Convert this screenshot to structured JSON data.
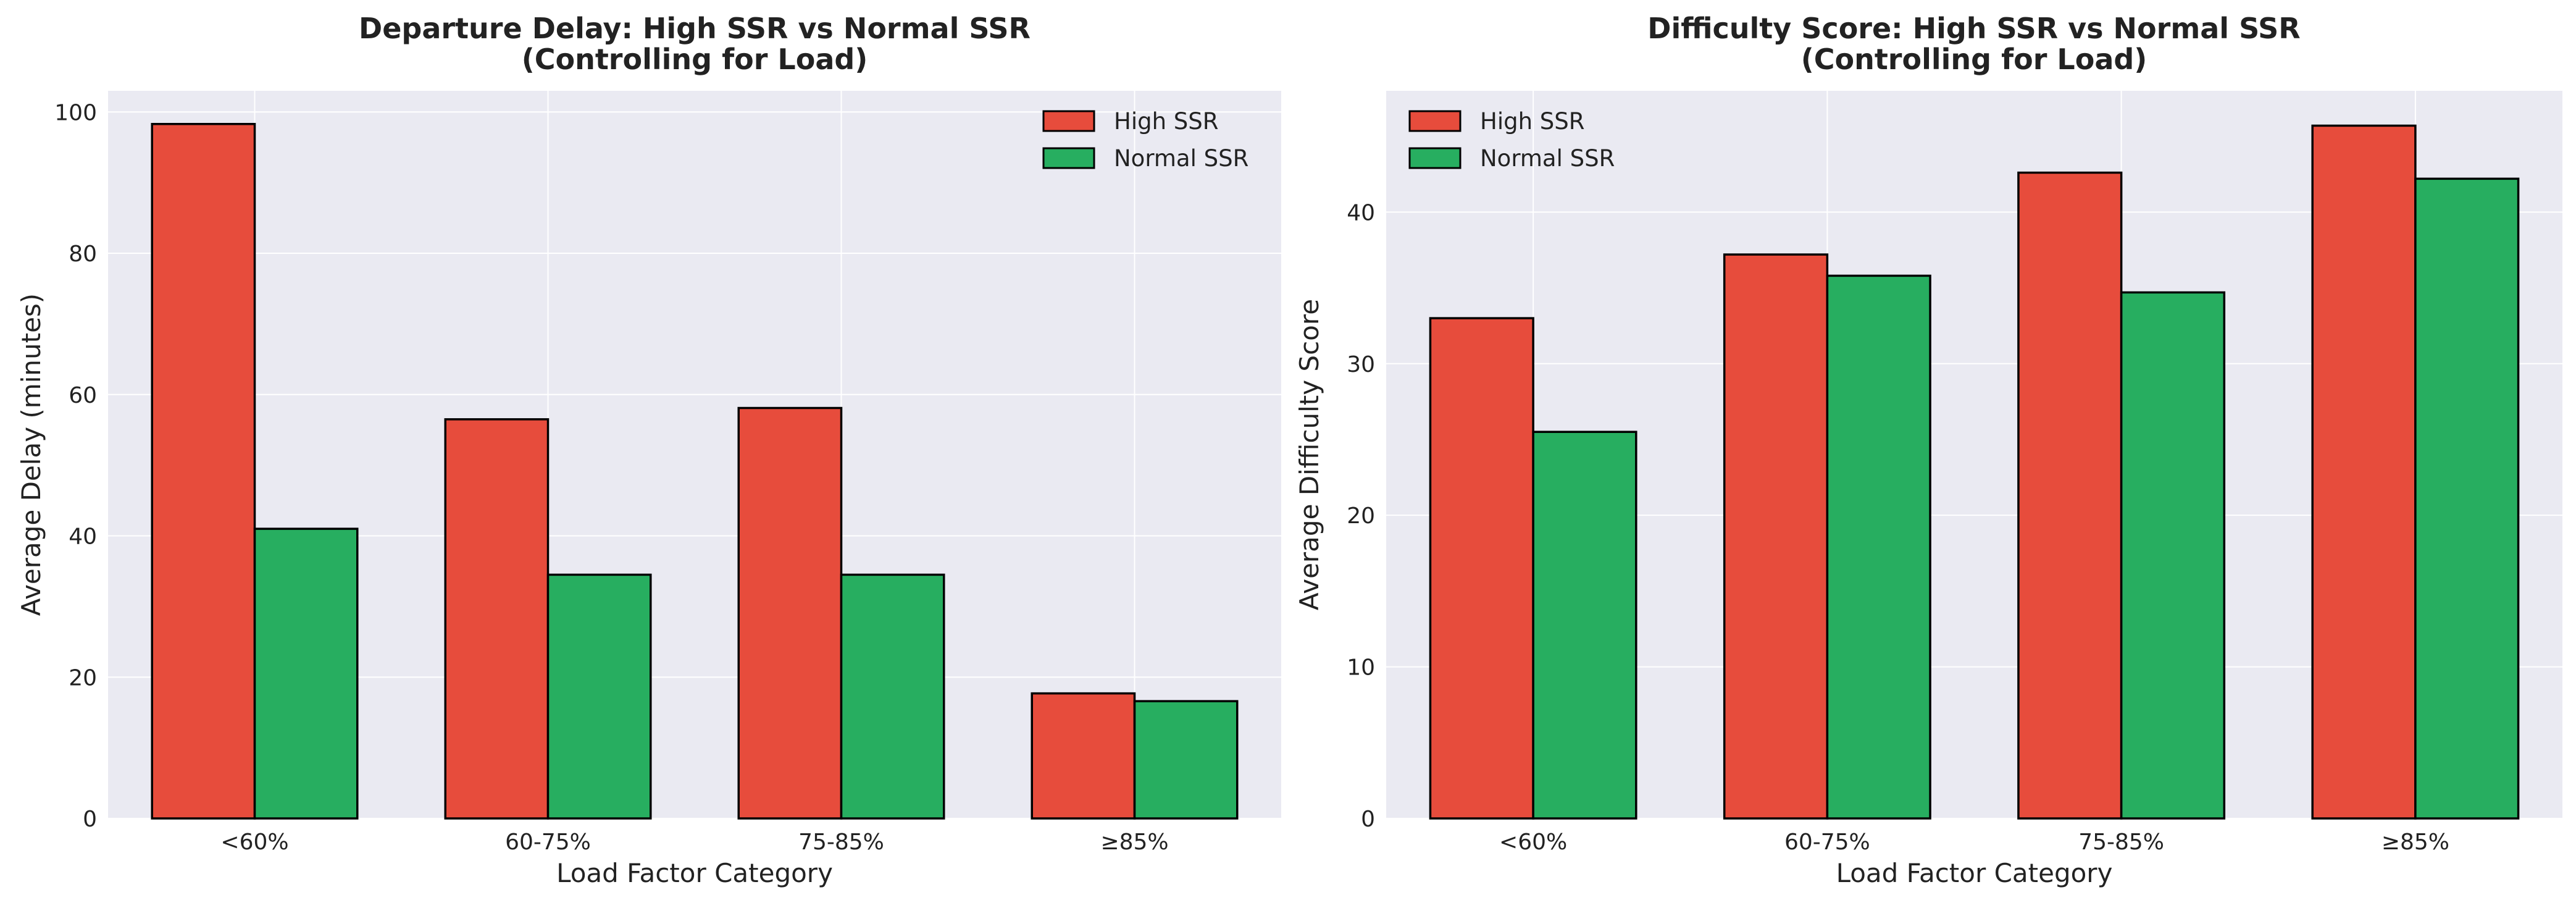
{
  "chart_data": [
    {
      "type": "bar",
      "title": "Departure Delay: High SSR vs Normal SSR\n(Controlling for Load)",
      "xlabel": "Load Factor Category",
      "ylabel": "Average Delay (minutes)",
      "categories": [
        "<60%",
        "60-75%",
        "75-85%",
        "≥85%"
      ],
      "series": [
        {
          "name": "High SSR",
          "values": [
            98.3,
            56.5,
            58.1,
            17.7
          ]
        },
        {
          "name": "Normal SSR",
          "values": [
            41.0,
            34.5,
            34.5,
            16.6
          ]
        }
      ],
      "ylim": [
        0,
        103
      ],
      "yticks": [
        0,
        20,
        40,
        60,
        80,
        100
      ],
      "grid": true,
      "legend": "top-right"
    },
    {
      "type": "bar",
      "title": "Difficulty Score: High SSR vs Normal SSR\n(Controlling for Load)",
      "xlabel": "Load Factor Category",
      "ylabel": "Average Difficulty Score",
      "categories": [
        "<60%",
        "60-75%",
        "75-85%",
        "≥85%"
      ],
      "series": [
        {
          "name": "High SSR",
          "values": [
            33.0,
            37.2,
            42.6,
            45.7
          ]
        },
        {
          "name": "Normal SSR",
          "values": [
            25.5,
            35.8,
            34.7,
            42.2
          ]
        }
      ],
      "ylim": [
        0,
        48
      ],
      "yticks": [
        0,
        10,
        20,
        30,
        40
      ],
      "grid": true,
      "legend": "top-left"
    }
  ],
  "colors": {
    "high_ssr": "#e74c3c",
    "normal_ssr": "#27ae60",
    "plot_background": "#eaeaf2",
    "gridline": "#ffffff",
    "bar_edge": "#000000"
  }
}
